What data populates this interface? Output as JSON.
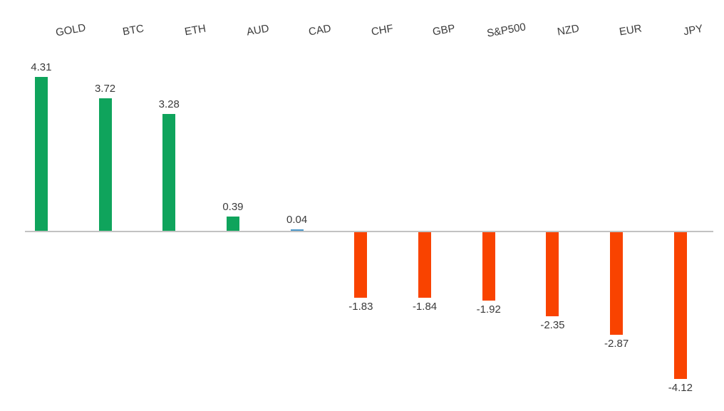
{
  "chart_data": {
    "type": "bar",
    "title": "",
    "xlabel": "",
    "ylabel": "",
    "categories": [
      "GOLD",
      "BTC",
      "ETH",
      "AUD",
      "CAD",
      "CHF",
      "GBP",
      "S&P500",
      "NZD",
      "EUR",
      "JPY"
    ],
    "values": [
      4.31,
      3.72,
      3.28,
      0.39,
      0.04,
      -1.83,
      -1.84,
      -1.92,
      -2.35,
      -2.87,
      -4.12
    ],
    "data_labels": [
      "4.31",
      "3.72",
      "3.28",
      "0.39",
      "0.04",
      "-1.83",
      "-1.84",
      "-1.92",
      "-2.35",
      "-2.87",
      "-4.12"
    ],
    "bar_colors": [
      "#0fa45c",
      "#0fa45c",
      "#0fa45c",
      "#0fa45c",
      "#4a97c9",
      "#f94300",
      "#f94300",
      "#f94300",
      "#f94300",
      "#f94300",
      "#f94300"
    ],
    "colors": {
      "positive": "#0fa45c",
      "negative": "#f94300",
      "near_zero": "#4a97c9",
      "axis": "#c2c2c2",
      "label_text": "#3a3a3a"
    },
    "ylim": [
      -4.5,
      4.5
    ],
    "baseline": 0,
    "grid": false,
    "y_axis_visible": false,
    "legend": null,
    "category_label_position": "top",
    "category_label_rotation_deg": -10
  }
}
